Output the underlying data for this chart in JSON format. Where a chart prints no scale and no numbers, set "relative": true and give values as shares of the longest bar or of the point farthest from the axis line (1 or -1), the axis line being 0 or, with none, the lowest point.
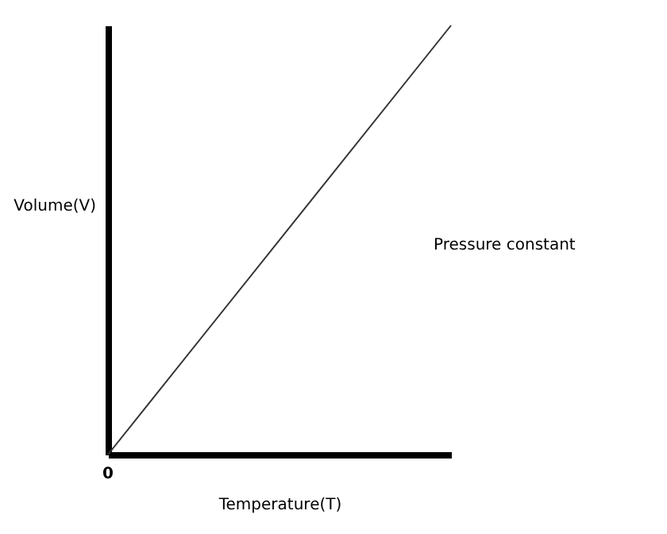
{
  "chart_data": {
    "type": "line",
    "categories": [
      null,
      null
    ],
    "relative": true,
    "xlabel": "Temperature(T)",
    "ylabel": "Volume(V)",
    "annotations": [
      "0",
      "Pressure constant"
    ],
    "series": [
      {
        "color": "#333333",
        "values": [
          0,
          1
        ]
      }
    ],
    "grid": false
  }
}
